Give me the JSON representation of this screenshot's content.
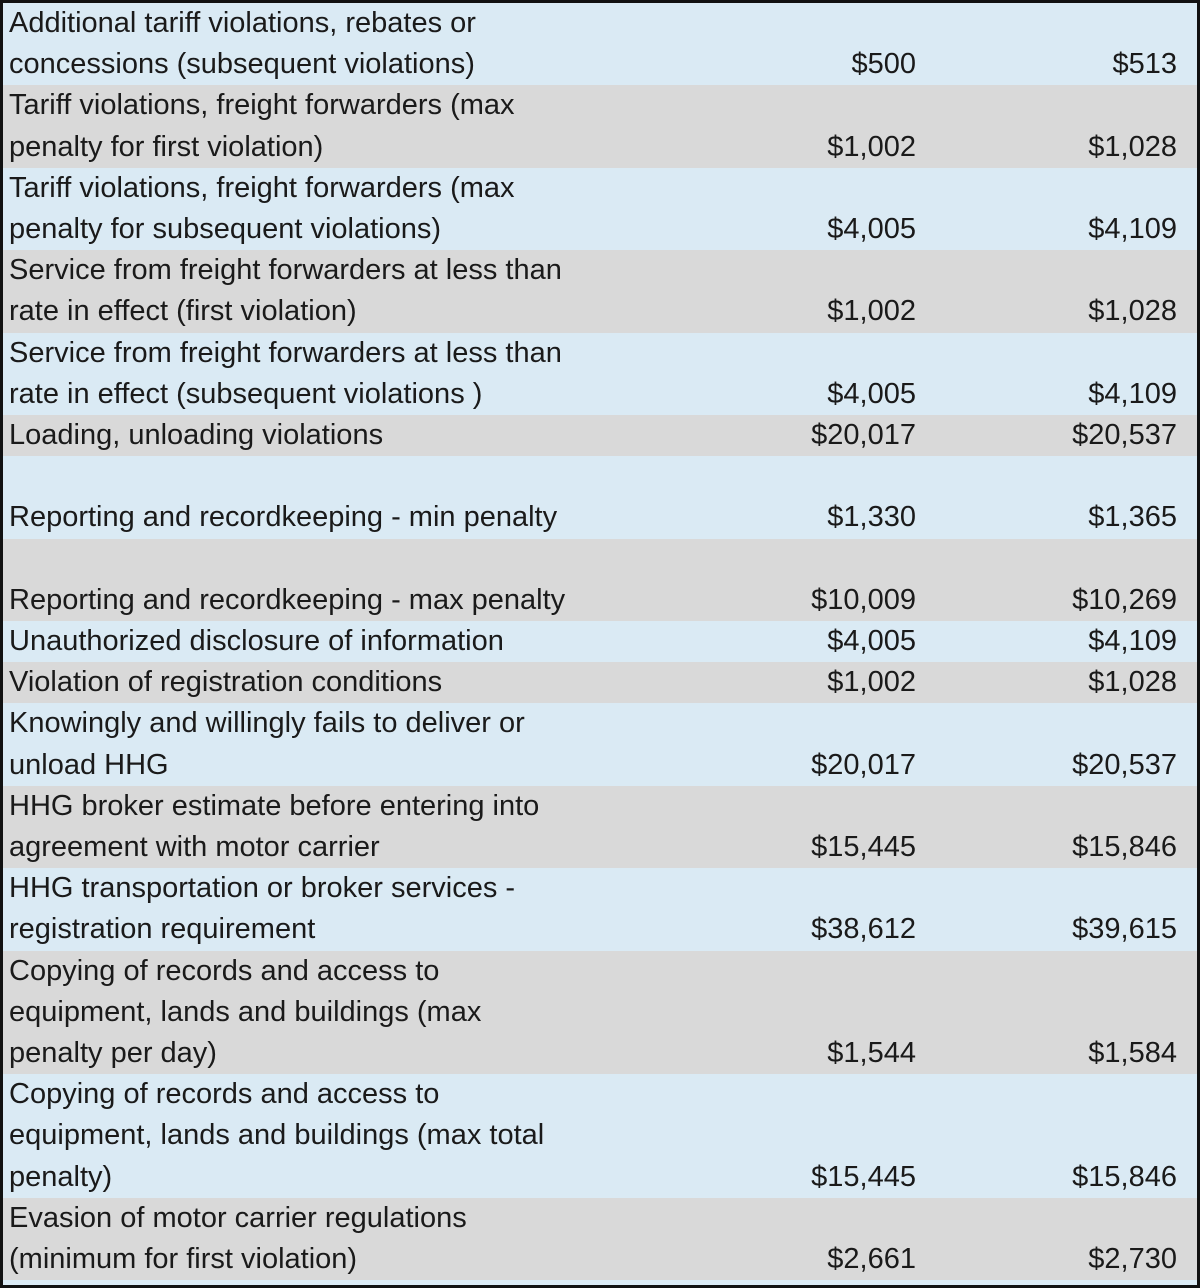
{
  "rows": [
    {
      "lines": [
        "Additional tariff violations, rebates or",
        "concessions (subsequent violations)"
      ],
      "v1": "$500",
      "v2": "$513"
    },
    {
      "lines": [
        "Tariff violations, freight forwarders (max",
        "penalty for first violation)"
      ],
      "v1": "$1,002",
      "v2": "$1,028"
    },
    {
      "lines": [
        "Tariff violations, freight forwarders (max",
        "penalty for subsequent violations)"
      ],
      "v1": "$4,005",
      "v2": "$4,109"
    },
    {
      "lines": [
        "Service from freight forwarders at less than",
        "rate in effect (first violation)"
      ],
      "v1": "$1,002",
      "v2": "$1,028"
    },
    {
      "lines": [
        "Service from freight forwarders at less than",
        "rate in effect (subsequent violations )"
      ],
      "v1": "$4,005",
      "v2": "$4,109"
    },
    {
      "lines": [
        "Loading, unloading violations"
      ],
      "v1": "$20,017",
      "v2": "$20,537"
    },
    {
      "lines": [
        "",
        "Reporting and recordkeeping - min penalty"
      ],
      "v1": "$1,330",
      "v2": "$1,365"
    },
    {
      "lines": [
        "",
        "Reporting and recordkeeping - max penalty"
      ],
      "v1": "$10,009",
      "v2": "$10,269"
    },
    {
      "lines": [
        "Unauthorized disclosure of information"
      ],
      "v1": "$4,005",
      "v2": "$4,109"
    },
    {
      "lines": [
        "Violation of registration conditions"
      ],
      "v1": "$1,002",
      "v2": "$1,028"
    },
    {
      "lines": [
        "Knowingly and willingly fails to deliver or",
        "unload HHG"
      ],
      "v1": "$20,017",
      "v2": "$20,537"
    },
    {
      "lines": [
        "HHG broker estimate before entering into",
        "agreement with motor carrier"
      ],
      "v1": "$15,445",
      "v2": "$15,846"
    },
    {
      "lines": [
        "HHG transportation or broker services -",
        "registration requirement"
      ],
      "v1": "$38,612",
      "v2": "$39,615"
    },
    {
      "lines": [
        "Copying of records and access to",
        "equipment, lands and buildings (max",
        "penalty per day)"
      ],
      "v1": "$1,544",
      "v2": "$1,584"
    },
    {
      "lines": [
        "Copying of records and access to",
        "equipment, lands and buildings (max total",
        "penalty)"
      ],
      "v1": "$15,445",
      "v2": "$15,846"
    },
    {
      "lines": [
        "Evasion of motor carrier regulations",
        "(minimum for first violation)"
      ],
      "v1": "$2,661",
      "v2": "$2,730"
    }
  ]
}
